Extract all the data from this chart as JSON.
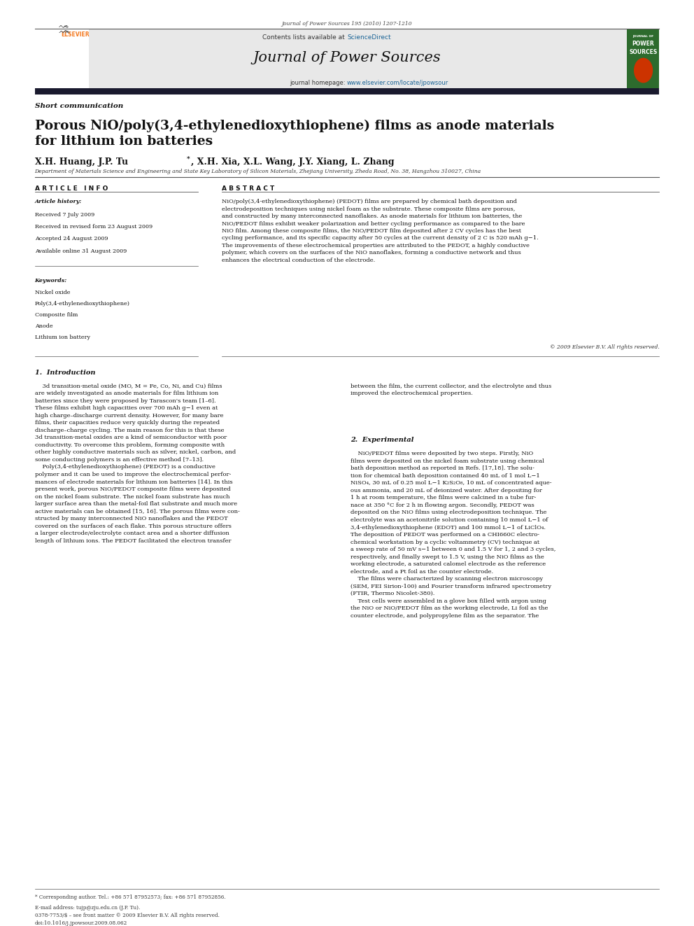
{
  "page_width": 9.92,
  "page_height": 13.23,
  "background_color": "#ffffff",
  "journal_ref": "Journal of Power Sources 195 (2010) 1207-1210",
  "journal_name": "Journal of Power Sources",
  "contents_line": "Contents lists available at ScienceDirect",
  "journal_homepage": "journal homepage: www.elsevier.com/locate/jpowsour",
  "section_label": "Short communication",
  "paper_title": "Porous NiO/poly(3,4-ethylenedioxythiophene) films as anode materials\nfor lithium ion batteries",
  "authors_part1": "X.H. Huang, J.P. Tu",
  "authors_part2": ", X.H. Xia, X.L. Wang, J.Y. Xiang, L. Zhang",
  "affiliation": "Department of Materials Science and Engineering and State Key Laboratory of Silicon Materials, Zhejiang University, Zheda Road, No. 38, Hangzhou 310027, China",
  "article_info_label": "A R T I C L E   I N F O",
  "abstract_label": "A B S T R A C T",
  "article_history_label": "Article history:",
  "received": "Received 7 July 2009",
  "revised": "Received in revised form 23 August 2009",
  "accepted": "Accepted 24 August 2009",
  "available": "Available online 31 August 2009",
  "keywords_label": "Keywords:",
  "keywords": [
    "Nickel oxide",
    "Poly(3,4-ethylenedioxythiophene)",
    "Composite film",
    "Anode",
    "Lithium ion battery"
  ],
  "abstract_text": "NiO/poly(3,4-ethylenedioxythiophene) (PEDOT) films are prepared by chemical bath deposition and\nelectrodeposition techniques using nickel foam as the substrate. These composite films are porous,\nand constructed by many interconnected nanoflakes. As anode materials for lithium ion batteries, the\nNiO/PEDOT films exhibit weaker polarization and better cycling performance as compared to the bare\nNiO film. Among these composite films, the NiO/PEDOT film deposited after 2 CV cycles has the best\ncycling performance, and its specific capacity after 50 cycles at the current density of 2 C is 520 mAh g−1.\nThe improvements of these electrochemical properties are attributed to the PEDOT, a highly conductive\npolymer, which covers on the surfaces of the NiO nanoflakes, forming a conductive network and thus\nenhances the electrical conduction of the electrode.",
  "copyright": "© 2009 Elsevier B.V. All rights reserved.",
  "intro_title": "1.  Introduction",
  "intro_col1": "    3d transition-metal oxide (MO, M = Fe, Co, Ni, and Cu) films\nare widely investigated as anode materials for film lithium ion\nbatteries since they were proposed by Tarascon's team [1–6].\nThese films exhibit high capacities over 700 mAh g−1 even at\nhigh charge–discharge current density. However, for many bare\nfilms, their capacities reduce very quickly during the repeated\ndischarge–charge cycling. The main reason for this is that these\n3d transition-metal oxides are a kind of semiconductor with poor\nconductivity. To overcome this problem, forming composite with\nother highly conductive materials such as silver, nickel, carbon, and\nsome conducting polymers is an effective method [7–13].\n    Poly(3,4-ethylenedioxythiophene) (PEDOT) is a conductive\npolymer and it can be used to improve the electrochemical perfor-\nmances of electrode materials for lithium ion batteries [14]. In this\npresent work, porous NiO/PEDOT composite films were deposited\non the nickel foam substrate. The nickel foam substrate has much\nlarger surface area than the metal-foil flat substrate and much more\nactive materials can be obtained [15, 16]. The porous films were con-\nstructed by many interconnected NiO nanoflakes and the PEDOT\ncovered on the surfaces of each flake. This porous structure offers\na larger electrode/electrolyte contact area and a shorter diffusion\nlength of lithium ions. The PEDOT facilitated the electron transfer",
  "intro_col2_start": "between the film, the current collector, and the electrolyte and thus\nimproved the electrochemical properties.",
  "experimental_title": "2.  Experimental",
  "experimental_text": "    NiO/PEDOT films were deposited by two steps. Firstly, NiO\nfilms were deposited on the nickel foam substrate using chemical\nbath deposition method as reported in Refs. [17,18]. The solu-\ntion for chemical bath deposition contained 40 mL of 1 mol L−1\nNiSO₄, 30 mL of 0.25 mol L−1 K₂S₂O₈, 10 mL of concentrated aque-\nous ammonia, and 20 mL of deionized water. After depositing for\n1 h at room temperature, the films were calcined in a tube fur-\nnace at 350 °C for 2 h in flowing argon. Secondly, PEDOT was\ndeposited on the NiO films using electrodeposition technique. The\nelectrolyte was an acetonitrile solution containing 10 mmol L−1 of\n3,4-ethylenedioxythiophene (EDOT) and 100 mmol L−1 of LiClO₄.\nThe deposition of PEDOT was performed on a CHI660C electro-\nchemical workstation by a cyclic voltammetry (CV) technique at\na sweep rate of 50 mV s−1 between 0 and 1.5 V for 1, 2 and 3 cycles,\nrespectively, and finally swept to 1.5 V, using the NiO films as the\nworking electrode, a saturated calomel electrode as the reference\nelectrode, and a Pt foil as the counter electrode.\n    The films were characterized by scanning electron microscopy\n(SEM, FEI Sirion-100) and Fourier transform infrared spectrometry\n(FTIR, Thermo Nicolet-380).\n    Test cells were assembled in a glove box filled with argon using\nthe NiO or NiO/PEDOT film as the working electrode, Li foil as the\ncounter electrode, and polypropylene film as the separator. The",
  "footnote_star": "* Corresponding author. Tel.: +86 571 87952573; fax: +86 571 87952856.",
  "footnote_email": "E-mail address: tujp@zju.edu.cn (J.P. Tu).",
  "issn_line": "0378-7753/$ – see front matter © 2009 Elsevier B.V. All rights reserved.",
  "doi_line": "doi:10.1016/j.jpowsour.2009.08.062",
  "header_bg": "#e8e8e8",
  "dark_bar_color": "#1a1a2e",
  "journal_cover_bg": "#2d6b2d",
  "elsevier_color": "#f47920",
  "sciencedirect_color": "#1a6496",
  "link_color": "#1a6496"
}
